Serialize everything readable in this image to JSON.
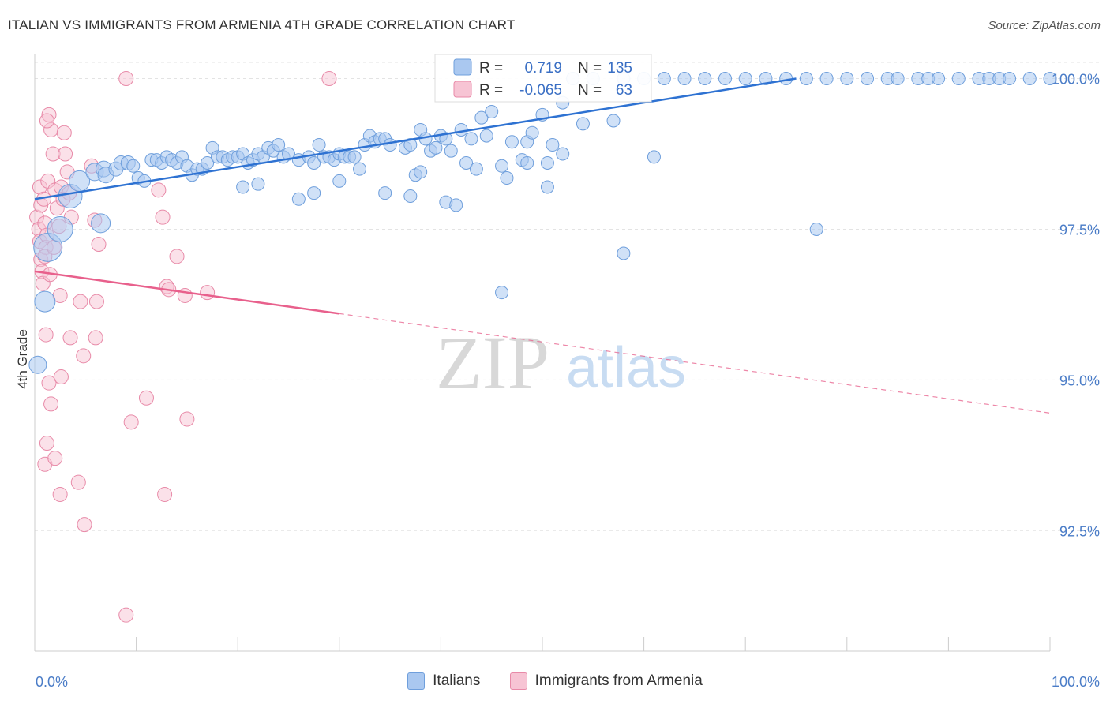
{
  "title": "ITALIAN VS IMMIGRANTS FROM ARMENIA 4TH GRADE CORRELATION CHART",
  "source": "Source: ZipAtlas.com",
  "watermark": {
    "zip": "ZIP",
    "atlas": "atlas"
  },
  "colors": {
    "blue_fill": "#aac8f0",
    "blue_stroke": "#6f9fdc",
    "blue_line": "#2e72d2",
    "pink_fill": "#f7c4d4",
    "pink_stroke": "#e88aa8",
    "pink_line": "#e8608c",
    "value_text": "#3a6fc4"
  },
  "legend": {
    "r_label": "R =",
    "n_label": "N =",
    "rows": [
      {
        "r": "0.719",
        "n": "135"
      },
      {
        "r": "-0.065",
        "n": "63"
      }
    ]
  },
  "bottom_legend": [
    {
      "label": "Italians"
    },
    {
      "label": "Immigrants from Armenia"
    }
  ],
  "chart_data": {
    "type": "scatter",
    "title": "ITALIAN VS IMMIGRANTS FROM ARMENIA 4TH GRADE CORRELATION CHART",
    "xlabel": "",
    "ylabel": "4th Grade",
    "xlim": [
      0,
      100
    ],
    "ylim": [
      90.5,
      100.4
    ],
    "x_tick_labels": [
      "0.0%",
      "100.0%"
    ],
    "y_ticks": [
      {
        "value": 100.0,
        "label": "100.0%"
      },
      {
        "value": 97.5,
        "label": "97.5%"
      },
      {
        "value": 95.0,
        "label": "95.0%"
      },
      {
        "value": 92.5,
        "label": "92.5%"
      }
    ],
    "grid": true,
    "legend_position": "top-center",
    "series": [
      {
        "name": "Italians",
        "r": 0.719,
        "n": 135,
        "trend": {
          "x": [
            0,
            75
          ],
          "y": [
            98.0,
            100.0
          ]
        },
        "points": [
          [
            0.3,
            95.25,
            11
          ],
          [
            1.0,
            96.3,
            13
          ],
          [
            1.3,
            97.2,
            18
          ],
          [
            2.5,
            97.5,
            16
          ],
          [
            3.5,
            98.05,
            15
          ],
          [
            4.4,
            98.3,
            13
          ],
          [
            5.9,
            98.45,
            11
          ],
          [
            6.5,
            97.6,
            12
          ],
          [
            6.8,
            98.5,
            10
          ],
          [
            7.0,
            98.4,
            10
          ],
          [
            8.0,
            98.5,
            9
          ],
          [
            8.5,
            98.6,
            9
          ],
          [
            9.2,
            98.6,
            9
          ],
          [
            9.7,
            98.55,
            8
          ],
          [
            10.2,
            98.35,
            8
          ],
          [
            10.8,
            98.3,
            8
          ],
          [
            11.5,
            98.65,
            8
          ],
          [
            12.0,
            98.65,
            8
          ],
          [
            12.5,
            98.6,
            8
          ],
          [
            13.0,
            98.7,
            8
          ],
          [
            13.5,
            98.65,
            8
          ],
          [
            14.0,
            98.6,
            8
          ],
          [
            14.5,
            98.7,
            8
          ],
          [
            15.0,
            98.55,
            8
          ],
          [
            15.5,
            98.4,
            8
          ],
          [
            16.0,
            98.5,
            8
          ],
          [
            16.5,
            98.5,
            8
          ],
          [
            17.0,
            98.6,
            8
          ],
          [
            17.5,
            98.85,
            8
          ],
          [
            18.0,
            98.7,
            8
          ],
          [
            18.5,
            98.7,
            8
          ],
          [
            19.0,
            98.65,
            8
          ],
          [
            19.5,
            98.7,
            8
          ],
          [
            20.0,
            98.7,
            8
          ],
          [
            20.5,
            98.75,
            8
          ],
          [
            21.0,
            98.6,
            8
          ],
          [
            21.5,
            98.65,
            8
          ],
          [
            22.0,
            98.75,
            8
          ],
          [
            22.5,
            98.7,
            8
          ],
          [
            23.0,
            98.85,
            8
          ],
          [
            23.5,
            98.8,
            8
          ],
          [
            24.0,
            98.9,
            8
          ],
          [
            24.5,
            98.7,
            8
          ],
          [
            25.0,
            98.75,
            8
          ],
          [
            26.0,
            98.65,
            8
          ],
          [
            27.0,
            98.7,
            8
          ],
          [
            27.5,
            98.6,
            8
          ],
          [
            28.0,
            98.9,
            8
          ],
          [
            28.5,
            98.7,
            8
          ],
          [
            29.0,
            98.7,
            8
          ],
          [
            29.5,
            98.65,
            8
          ],
          [
            30.0,
            98.75,
            8
          ],
          [
            30.5,
            98.7,
            8
          ],
          [
            31.0,
            98.7,
            8
          ],
          [
            31.5,
            98.7,
            8
          ],
          [
            32.0,
            98.5,
            8
          ],
          [
            32.5,
            98.9,
            8
          ],
          [
            33.0,
            99.05,
            8
          ],
          [
            33.5,
            98.95,
            8
          ],
          [
            34.0,
            99.0,
            8
          ],
          [
            34.5,
            99.0,
            8
          ],
          [
            35.0,
            98.9,
            8
          ],
          [
            36.5,
            98.85,
            8
          ],
          [
            37.0,
            98.9,
            8
          ],
          [
            37.5,
            98.4,
            8
          ],
          [
            38.0,
            99.15,
            8
          ],
          [
            38.5,
            99.0,
            8
          ],
          [
            39.0,
            98.8,
            8
          ],
          [
            39.5,
            98.85,
            8
          ],
          [
            40.0,
            99.05,
            8
          ],
          [
            40.5,
            99.0,
            8
          ],
          [
            41.0,
            98.8,
            8
          ],
          [
            42.0,
            99.15,
            8
          ],
          [
            42.5,
            98.6,
            8
          ],
          [
            43.0,
            99.0,
            8
          ],
          [
            43.5,
            98.5,
            8
          ],
          [
            44.0,
            99.35,
            8
          ],
          [
            44.5,
            99.05,
            8
          ],
          [
            45.0,
            99.45,
            8
          ],
          [
            46.0,
            98.55,
            8
          ],
          [
            47.0,
            98.95,
            8
          ],
          [
            48.0,
            98.65,
            8
          ],
          [
            48.5,
            98.95,
            8
          ],
          [
            49.0,
            99.1,
            8
          ],
          [
            50.0,
            99.4,
            8
          ],
          [
            50.5,
            98.6,
            8
          ],
          [
            51.0,
            98.9,
            8
          ],
          [
            52.0,
            99.6,
            8
          ],
          [
            53.0,
            100.0,
            8
          ],
          [
            54.0,
            99.25,
            8
          ],
          [
            55.0,
            100.0,
            8
          ],
          [
            57.0,
            99.3,
            8
          ],
          [
            58.0,
            100.0,
            8
          ],
          [
            60.0,
            100.0,
            8
          ],
          [
            62.0,
            100.0,
            8
          ],
          [
            64.0,
            100.0,
            8
          ],
          [
            66.0,
            100.0,
            8
          ],
          [
            68.0,
            100.0,
            8
          ],
          [
            70.0,
            100.0,
            8
          ],
          [
            72.0,
            100.0,
            8
          ],
          [
            74.0,
            100.0,
            8
          ],
          [
            76.0,
            100.0,
            8
          ],
          [
            78.0,
            100.0,
            8
          ],
          [
            80.0,
            100.0,
            8
          ],
          [
            82.0,
            100.0,
            8
          ],
          [
            84.0,
            100.0,
            8
          ],
          [
            85.0,
            100.0,
            8
          ],
          [
            87.0,
            100.0,
            8
          ],
          [
            88.0,
            100.0,
            8
          ],
          [
            89.0,
            100.0,
            8
          ],
          [
            91.0,
            100.0,
            8
          ],
          [
            93.0,
            100.0,
            8
          ],
          [
            94.0,
            100.0,
            8
          ],
          [
            95.0,
            100.0,
            8
          ],
          [
            96.0,
            100.0,
            8
          ],
          [
            98.0,
            100.0,
            8
          ],
          [
            100.0,
            100.0,
            8
          ],
          [
            20.5,
            98.2,
            8
          ],
          [
            22.0,
            98.25,
            8
          ],
          [
            26.0,
            98.0,
            8
          ],
          [
            27.5,
            98.1,
            8
          ],
          [
            34.5,
            98.1,
            8
          ],
          [
            37.0,
            98.05,
            8
          ],
          [
            40.5,
            97.95,
            8
          ],
          [
            41.5,
            97.9,
            8
          ],
          [
            46.5,
            98.35,
            8
          ],
          [
            48.5,
            98.6,
            8
          ],
          [
            50.5,
            98.2,
            8
          ],
          [
            52.0,
            98.75,
            8
          ],
          [
            58.0,
            97.1,
            8
          ],
          [
            61.0,
            98.7,
            8
          ],
          [
            46.0,
            96.45,
            8
          ],
          [
            77.0,
            97.5,
            8
          ],
          [
            38.0,
            98.45,
            8
          ],
          [
            30.0,
            98.3,
            8
          ]
        ]
      },
      {
        "name": "Immigrants from Armenia",
        "r": -0.065,
        "n": 63,
        "trend": {
          "x": [
            0,
            30
          ],
          "y": [
            96.8,
            96.1
          ]
        },
        "trend_extended": {
          "x": [
            30,
            100
          ],
          "y": [
            96.1,
            94.45
          ]
        },
        "points": [
          [
            0.2,
            97.7,
            9
          ],
          [
            0.4,
            97.5,
            9
          ],
          [
            0.5,
            97.3,
            9
          ],
          [
            0.6,
            97.0,
            9
          ],
          [
            0.7,
            96.8,
            9
          ],
          [
            0.8,
            96.6,
            9
          ],
          [
            0.5,
            98.2,
            9
          ],
          [
            0.6,
            97.9,
            9
          ],
          [
            0.9,
            98.0,
            9
          ],
          [
            1.0,
            97.6,
            9
          ],
          [
            1.1,
            97.2,
            9
          ],
          [
            1.2,
            97.4,
            9
          ],
          [
            1.3,
            98.3,
            9
          ],
          [
            1.4,
            99.4,
            9
          ],
          [
            1.6,
            99.15,
            9
          ],
          [
            1.8,
            98.75,
            9
          ],
          [
            2.0,
            98.15,
            9
          ],
          [
            2.2,
            97.85,
            9
          ],
          [
            2.4,
            97.55,
            9
          ],
          [
            2.6,
            98.2,
            9
          ],
          [
            2.8,
            98.0,
            9
          ],
          [
            3.0,
            98.75,
            9
          ],
          [
            3.2,
            98.45,
            9
          ],
          [
            3.4,
            98.1,
            9
          ],
          [
            3.6,
            97.7,
            9
          ],
          [
            1.2,
            99.3,
            9
          ],
          [
            2.9,
            99.1,
            9
          ],
          [
            1.0,
            97.05,
            9
          ],
          [
            1.5,
            96.75,
            9
          ],
          [
            1.9,
            97.2,
            9
          ],
          [
            2.5,
            96.4,
            9
          ],
          [
            1.1,
            95.75,
            9
          ],
          [
            1.4,
            94.95,
            9
          ],
          [
            1.6,
            94.6,
            9
          ],
          [
            2.6,
            95.05,
            9
          ],
          [
            3.5,
            95.7,
            9
          ],
          [
            4.5,
            96.3,
            9
          ],
          [
            4.8,
            95.4,
            9
          ],
          [
            5.6,
            98.55,
            9
          ],
          [
            5.9,
            97.65,
            9
          ],
          [
            6.1,
            96.3,
            9
          ],
          [
            6.0,
            95.7,
            9
          ],
          [
            6.3,
            97.25,
            9
          ],
          [
            9.5,
            94.3,
            9
          ],
          [
            11.0,
            94.7,
            9
          ],
          [
            12.2,
            98.15,
            9
          ],
          [
            12.6,
            97.7,
            9
          ],
          [
            12.8,
            93.1,
            9
          ],
          [
            13.0,
            96.55,
            9
          ],
          [
            13.2,
            96.5,
            9
          ],
          [
            14.0,
            97.05,
            9
          ],
          [
            14.8,
            96.4,
            9
          ],
          [
            15.0,
            94.35,
            9
          ],
          [
            17.0,
            96.45,
            9
          ],
          [
            1.2,
            93.95,
            9
          ],
          [
            1.0,
            93.6,
            9
          ],
          [
            2.0,
            93.7,
            9
          ],
          [
            2.5,
            93.1,
            9
          ],
          [
            4.3,
            93.3,
            9
          ],
          [
            4.9,
            92.6,
            9
          ],
          [
            9.0,
            100.0,
            9
          ],
          [
            29.0,
            100.0,
            9
          ],
          [
            9.0,
            91.1,
            9
          ]
        ]
      }
    ]
  }
}
